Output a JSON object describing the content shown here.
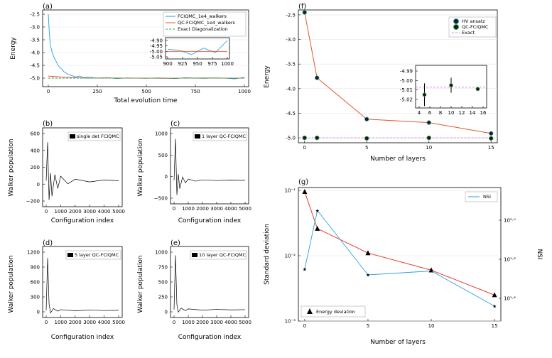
{
  "panels": {
    "a": {
      "label": "(a)",
      "xlabel": "Total evolution time",
      "ylabel": "Energy",
      "legend": [
        "FCIQMC_1e4_walkers",
        "QC-FCIQMC_1e4_walkers",
        "Exact Diagonalization"
      ],
      "xticks": [
        "0",
        "250",
        "500",
        "750",
        "1000"
      ],
      "yticks": [
        "-2.5",
        "-3.0",
        "-3.5",
        "-4.0",
        "-4.5",
        "-5.0"
      ],
      "inset_xticks": [
        "900",
        "925",
        "950",
        "975",
        "1000"
      ],
      "inset_yticks": [
        "-4.90",
        "-4.95",
        "-5.00",
        "-5.05"
      ]
    },
    "b": {
      "label": "(b)",
      "xlabel": "Configuration index",
      "ylabel": "Walker population",
      "legend": "single det FCIQMC",
      "xticks": [
        "0",
        "1000",
        "2000",
        "3000",
        "4000",
        "5000"
      ],
      "yticks": [
        "600",
        "400",
        "200",
        "0",
        "−200"
      ]
    },
    "c": {
      "label": "(c)",
      "xlabel": "Configuration index",
      "ylabel": "Walker population",
      "legend": "1 layer QC-FCIQMC",
      "xticks": [
        "0",
        "1000",
        "2000",
        "3000",
        "4000",
        "5000"
      ],
      "yticks": [
        "1000",
        "500",
        "0",
        "−500"
      ]
    },
    "d": {
      "label": "(d)",
      "xlabel": "Configuration index",
      "ylabel": "Walker population",
      "legend": "5 layer QC-FCIQMC",
      "xticks": [
        "0",
        "1000",
        "2000",
        "3000",
        "4000",
        "5000"
      ],
      "yticks": [
        "1200",
        "900",
        "600",
        "300",
        "0"
      ]
    },
    "e": {
      "label": "(e)",
      "xlabel": "Configuration index",
      "ylabel": "Walker population",
      "legend": "10 layer QC-FCIQMC",
      "xticks": [
        "0",
        "1000",
        "2000",
        "3000",
        "4000",
        "5000"
      ],
      "yticks": [
        "1000",
        "750",
        "500",
        "250",
        "0"
      ]
    },
    "f": {
      "label": "(f)",
      "xlabel": "Number of layers",
      "ylabel": "Energy",
      "legend": [
        "HV ansatz",
        "QC-FCIQMC",
        "Exact"
      ],
      "xticks": [
        "0",
        "5",
        "10",
        "15"
      ],
      "yticks": [
        "-2.5",
        "-3.0",
        "-3.5",
        "-4.0",
        "-4.5",
        "-5.0"
      ],
      "inset_xticks": [
        "4",
        "6",
        "8",
        "10",
        "12",
        "14",
        "16"
      ],
      "inset_yticks": [
        "-4.99",
        "-5.00",
        "-5.01",
        "-5.02"
      ]
    },
    "g": {
      "label": "(g)",
      "xlabel": "Number of layers",
      "ylabel": "Standard deviation",
      "ylabel2": "NSI",
      "legend_right": "NSI",
      "legend_left": "Energy deviation",
      "xticks": [
        "0",
        "5",
        "10",
        "15"
      ],
      "yticks": [
        "10⁻¹",
        "10⁻²",
        "10⁻³"
      ],
      "y2ticks": [
        "10²·⁰",
        "10¹·⁸",
        "10¹·⁶"
      ]
    }
  },
  "chart_data": [
    {
      "type": "line",
      "panel": "a",
      "title": "",
      "xlabel": "Total evolution time",
      "ylabel": "Energy",
      "xlim": [
        0,
        1000
      ],
      "ylim": [
        -5.2,
        -2.4
      ],
      "series": [
        {
          "name": "FCIQMC_1e4_walkers",
          "color": "#1f9ee8",
          "x": [
            0,
            5,
            10,
            20,
            30,
            40,
            50,
            60,
            70,
            80,
            90,
            100,
            120,
            140,
            160,
            180,
            200,
            250,
            300,
            350,
            400,
            450,
            500,
            550,
            600,
            650,
            700,
            750,
            800,
            850,
            900,
            950,
            1000
          ],
          "y": [
            -2.5,
            -3.2,
            -3.7,
            -4.0,
            -4.2,
            -4.35,
            -4.5,
            -4.6,
            -4.65,
            -4.75,
            -4.8,
            -4.85,
            -4.9,
            -4.95,
            -4.92,
            -4.98,
            -4.96,
            -5.0,
            -4.98,
            -5.02,
            -4.99,
            -5.0,
            -5.01,
            -4.99,
            -5.0,
            -5.02,
            -4.98,
            -5.0,
            -5.01,
            -4.99,
            -5.0,
            -5.03,
            -4.97
          ]
        },
        {
          "name": "QC-FCIQMC_1e4_walkers",
          "color": "#e0562f",
          "x": [
            0,
            100,
            200,
            300,
            400,
            500,
            600,
            700,
            800,
            900,
            1000
          ],
          "y": [
            -4.92,
            -4.97,
            -5.0,
            -4.99,
            -5.0,
            -5.0,
            -5.01,
            -5.0,
            -4.99,
            -5.0,
            -5.0
          ]
        },
        {
          "name": "Exact Diagonalization",
          "color": "#3aa34a",
          "x": [
            0,
            1000
          ],
          "y": [
            -5.0,
            -5.0
          ]
        }
      ]
    },
    {
      "type": "line",
      "panel": "b",
      "legend": "single det FCIQMC",
      "xlim": [
        0,
        5000
      ],
      "ylim": [
        -300,
        650
      ],
      "x": [
        0,
        100,
        200,
        300,
        400,
        600,
        800,
        1000,
        1500,
        2000,
        3000,
        4000,
        5000
      ],
      "y": [
        0,
        500,
        -250,
        100,
        -200,
        80,
        -100,
        60,
        -40,
        20,
        -15,
        10,
        0
      ]
    },
    {
      "type": "line",
      "panel": "c",
      "legend": "1 layer QC-FCIQMC",
      "xlim": [
        0,
        5000
      ],
      "ylim": [
        -500,
        1200
      ],
      "x": [
        0,
        100,
        200,
        300,
        400,
        600,
        800,
        1000,
        1500,
        2000,
        3000,
        4000,
        5000
      ],
      "y": [
        0,
        1000,
        -350,
        150,
        -200,
        80,
        -60,
        30,
        -20,
        10,
        -5,
        5,
        0
      ]
    },
    {
      "type": "line",
      "panel": "d",
      "legend": "5 layer QC-FCIQMC",
      "xlim": [
        0,
        5000
      ],
      "ylim": [
        -100,
        1400
      ],
      "x": [
        0,
        100,
        200,
        300,
        500,
        800,
        1000,
        2000,
        3000,
        4000,
        5000
      ],
      "y": [
        0,
        1200,
        150,
        -60,
        40,
        -20,
        15,
        -10,
        5,
        -5,
        0
      ]
    },
    {
      "type": "line",
      "panel": "e",
      "legend": "10 layer QC-FCIQMC",
      "xlim": [
        0,
        5000
      ],
      "ylim": [
        -100,
        1200
      ],
      "x": [
        0,
        100,
        200,
        300,
        500,
        800,
        1000,
        2000,
        3000,
        4000,
        5000
      ],
      "y": [
        0,
        1080,
        100,
        -50,
        30,
        -20,
        15,
        -10,
        5,
        -5,
        0
      ]
    },
    {
      "type": "line",
      "panel": "f",
      "xlabel": "Number of layers",
      "ylabel": "Energy",
      "xlim": [
        -0.5,
        15.5
      ],
      "ylim": [
        -5.1,
        -2.4
      ],
      "series": [
        {
          "name": "HV ansatz",
          "color": "#e0562f",
          "x": [
            0,
            1,
            5,
            10,
            15
          ],
          "y": [
            -2.45,
            -3.78,
            -4.62,
            -4.69,
            -4.91
          ]
        },
        {
          "name": "QC-FCIQMC",
          "x": [
            0,
            1,
            5,
            10,
            15
          ],
          "y": [
            -5.0,
            -5.0,
            -5.01,
            -5.0,
            -5.01
          ],
          "inset_x": [
            5,
            10,
            15
          ],
          "inset_y": [
            -5.015,
            -5.005,
            -5.009
          ],
          "inset_err": [
            0.012,
            0.008,
            0.002
          ]
        },
        {
          "name": "Exact",
          "color": "#d48ce0",
          "x": [
            0,
            15
          ],
          "y": [
            -5.0,
            -5.0
          ]
        }
      ]
    },
    {
      "type": "line",
      "panel": "g",
      "xlabel": "Number of layers",
      "ylabel": "Standard deviation",
      "ylabel2": "NSI",
      "xlim": [
        -0.5,
        15.5
      ],
      "ylim_log10": [
        -3,
        -1
      ],
      "series": [
        {
          "name": "Energy deviation",
          "color": "#e53b2c",
          "x": [
            0,
            1,
            5,
            10,
            15
          ],
          "y": [
            0.095,
            0.026,
            0.011,
            0.006,
            0.0025
          ]
        },
        {
          "name": "NSI",
          "color": "#2f9fe0",
          "axis": "right",
          "x": [
            0,
            1,
            5,
            10,
            15
          ],
          "y_log10": [
            1.75,
            2.05,
            1.72,
            1.74,
            1.56
          ]
        }
      ]
    }
  ]
}
